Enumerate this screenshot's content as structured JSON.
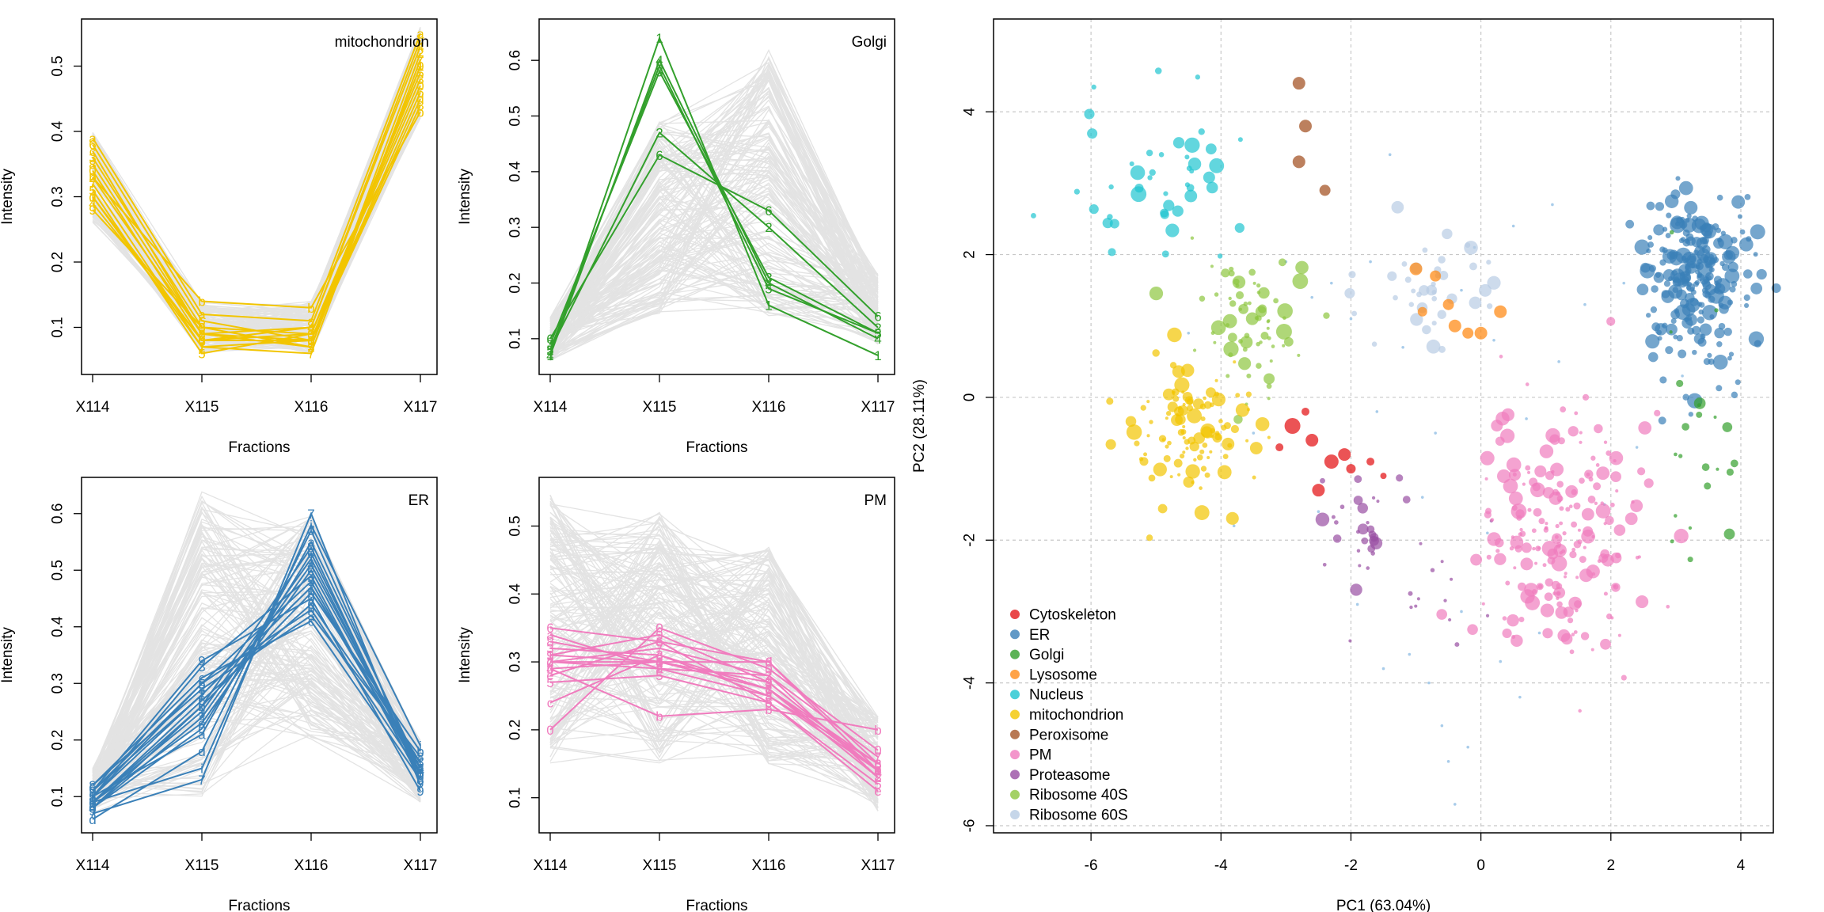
{
  "chart_data": [
    {
      "type": "line",
      "title": "mitochondrion",
      "xlabel": "Fractions",
      "ylabel": "Intensity",
      "categories": [
        "X114",
        "X115",
        "X116",
        "X117"
      ],
      "ylim": [
        0.04,
        0.56
      ],
      "yticks": [
        0.1,
        0.2,
        0.3,
        0.4,
        0.5
      ],
      "color": "#F2C500",
      "background_lines": {
        "count": 160,
        "range_min": [
          0.26,
          0.06,
          0.06,
          0.42
        ],
        "range_max": [
          0.4,
          0.14,
          0.14,
          0.56
        ]
      },
      "series": [
        {
          "label": "1",
          "values": [
            0.3,
            0.07,
            0.08,
            0.5
          ]
        },
        {
          "label": "2",
          "values": [
            0.33,
            0.09,
            0.07,
            0.52
          ]
        },
        {
          "label": "3",
          "values": [
            0.36,
            0.1,
            0.09,
            0.48
          ]
        },
        {
          "label": "4",
          "values": [
            0.29,
            0.08,
            0.1,
            0.53
          ]
        },
        {
          "label": "5",
          "values": [
            0.31,
            0.06,
            0.09,
            0.49
          ]
        },
        {
          "label": "6",
          "values": [
            0.38,
            0.11,
            0.08,
            0.46
          ]
        },
        {
          "label": "7",
          "values": [
            0.32,
            0.07,
            0.06,
            0.51
          ]
        },
        {
          "label": "8",
          "values": [
            0.35,
            0.09,
            0.08,
            0.44
          ]
        },
        {
          "label": "9",
          "values": [
            0.28,
            0.1,
            0.07,
            0.5
          ]
        },
        {
          "label": "0",
          "values": [
            0.34,
            0.08,
            0.09,
            0.47
          ]
        },
        {
          "label": "a",
          "values": [
            0.39,
            0.12,
            0.11,
            0.55
          ]
        },
        {
          "label": "b",
          "values": [
            0.33,
            0.14,
            0.13,
            0.43
          ]
        },
        {
          "label": "c",
          "values": [
            0.37,
            0.09,
            0.1,
            0.54
          ]
        },
        {
          "label": "d",
          "values": [
            0.3,
            0.08,
            0.08,
            0.45
          ]
        }
      ]
    },
    {
      "type": "line",
      "title": "Golgi",
      "xlabel": "Fractions",
      "ylabel": "Intensity",
      "categories": [
        "X114",
        "X115",
        "X116",
        "X117"
      ],
      "ylim": [
        0.05,
        0.66
      ],
      "yticks": [
        0.1,
        0.2,
        0.3,
        0.4,
        0.5,
        0.6
      ],
      "color": "#33A02C",
      "background_lines": {
        "count": 160,
        "range_min": [
          0.06,
          0.14,
          0.14,
          0.09
        ],
        "range_max": [
          0.14,
          0.5,
          0.62,
          0.22
        ]
      },
      "series": [
        {
          "label": "1",
          "values": [
            0.07,
            0.64,
            0.16,
            0.07
          ]
        },
        {
          "label": "2",
          "values": [
            0.08,
            0.47,
            0.3,
            0.12
          ]
        },
        {
          "label": "3",
          "values": [
            0.09,
            0.58,
            0.21,
            0.11
          ]
        },
        {
          "label": "4",
          "values": [
            0.07,
            0.6,
            0.2,
            0.1
          ]
        },
        {
          "label": "5",
          "values": [
            0.08,
            0.59,
            0.19,
            0.11
          ]
        },
        {
          "label": "6",
          "values": [
            0.1,
            0.43,
            0.33,
            0.14
          ]
        }
      ]
    },
    {
      "type": "line",
      "title": "ER",
      "xlabel": "Fractions",
      "ylabel": "Intensity",
      "categories": [
        "X114",
        "X115",
        "X116",
        "X117"
      ],
      "ylim": [
        0.05,
        0.65
      ],
      "yticks": [
        0.1,
        0.2,
        0.3,
        0.4,
        0.5,
        0.6
      ],
      "color": "#3A80B8",
      "background_lines": {
        "count": 160,
        "range_min": [
          0.07,
          0.1,
          0.2,
          0.09
        ],
        "range_max": [
          0.15,
          0.64,
          0.6,
          0.2
        ]
      },
      "series": [
        {
          "label": "1",
          "values": [
            0.09,
            0.25,
            0.52,
            0.14
          ]
        },
        {
          "label": "2",
          "values": [
            0.11,
            0.28,
            0.47,
            0.15
          ]
        },
        {
          "label": "3",
          "values": [
            0.1,
            0.33,
            0.49,
            0.13
          ]
        },
        {
          "label": "4",
          "values": [
            0.08,
            0.24,
            0.51,
            0.15
          ]
        },
        {
          "label": "5",
          "values": [
            0.1,
            0.3,
            0.48,
            0.14
          ]
        },
        {
          "label": "6",
          "values": [
            0.09,
            0.27,
            0.44,
            0.16
          ]
        },
        {
          "label": "7",
          "values": [
            0.07,
            0.13,
            0.6,
            0.12
          ]
        },
        {
          "label": "8",
          "values": [
            0.12,
            0.29,
            0.42,
            0.17
          ]
        },
        {
          "label": "9",
          "values": [
            0.11,
            0.34,
            0.45,
            0.11
          ]
        },
        {
          "label": "0",
          "values": [
            0.08,
            0.22,
            0.53,
            0.14
          ]
        },
        {
          "label": "a",
          "values": [
            0.1,
            0.21,
            0.55,
            0.15
          ]
        },
        {
          "label": "b",
          "values": [
            0.09,
            0.26,
            0.46,
            0.18
          ]
        },
        {
          "label": "c",
          "values": [
            0.12,
            0.31,
            0.41,
            0.13
          ]
        },
        {
          "label": "d",
          "values": [
            0.06,
            0.18,
            0.57,
            0.14
          ]
        },
        {
          "label": "e",
          "values": [
            0.09,
            0.23,
            0.5,
            0.15
          ]
        },
        {
          "label": "f",
          "values": [
            0.1,
            0.28,
            0.47,
            0.16
          ]
        },
        {
          "label": "g",
          "values": [
            0.08,
            0.26,
            0.54,
            0.13
          ]
        },
        {
          "label": "h",
          "values": [
            0.11,
            0.3,
            0.43,
            0.14
          ]
        },
        {
          "label": "i",
          "values": [
            0.09,
            0.15,
            0.58,
            0.19
          ]
        }
      ]
    },
    {
      "type": "line",
      "title": "PM",
      "xlabel": "Fractions",
      "ylabel": "Intensity",
      "categories": [
        "X114",
        "X115",
        "X116",
        "X117"
      ],
      "ylim": [
        0.06,
        0.56
      ],
      "yticks": [
        0.1,
        0.2,
        0.3,
        0.4,
        0.5
      ],
      "color": "#F07CBE",
      "background_lines": {
        "count": 160,
        "range_min": [
          0.15,
          0.15,
          0.15,
          0.08
        ],
        "range_max": [
          0.55,
          0.52,
          0.47,
          0.22
        ]
      },
      "series": [
        {
          "label": "1",
          "values": [
            0.31,
            0.3,
            0.26,
            0.14
          ]
        },
        {
          "label": "2",
          "values": [
            0.3,
            0.29,
            0.28,
            0.13
          ]
        },
        {
          "label": "3",
          "values": [
            0.32,
            0.31,
            0.25,
            0.15
          ]
        },
        {
          "label": "4",
          "values": [
            0.29,
            0.3,
            0.27,
            0.14
          ]
        },
        {
          "label": "5",
          "values": [
            0.27,
            0.28,
            0.24,
            0.12
          ]
        },
        {
          "label": "6",
          "values": [
            0.35,
            0.33,
            0.3,
            0.15
          ]
        },
        {
          "label": "7",
          "values": [
            0.3,
            0.32,
            0.28,
            0.16
          ]
        },
        {
          "label": "8",
          "values": [
            0.33,
            0.3,
            0.26,
            0.13
          ]
        },
        {
          "label": "9",
          "values": [
            0.31,
            0.34,
            0.27,
            0.14
          ]
        },
        {
          "label": "0",
          "values": [
            0.2,
            0.35,
            0.29,
            0.17
          ]
        },
        {
          "label": "a",
          "values": [
            0.34,
            0.29,
            0.25,
            0.14
          ]
        },
        {
          "label": "b",
          "values": [
            0.29,
            0.22,
            0.23,
            0.2
          ]
        },
        {
          "label": "c",
          "values": [
            0.24,
            0.31,
            0.26,
            0.15
          ]
        },
        {
          "label": "d",
          "values": [
            0.3,
            0.3,
            0.3,
            0.14
          ]
        },
        {
          "label": "e",
          "values": [
            0.28,
            0.33,
            0.24,
            0.11
          ]
        }
      ]
    },
    {
      "type": "scatter",
      "xlabel": "PC1 (63.04%)",
      "ylabel": "PC2 (28.11%)",
      "xlim": [
        -7.5,
        4.5
      ],
      "ylim": [
        -6.1,
        5.3
      ],
      "xticks": [
        -6,
        -4,
        -2,
        0,
        2,
        4
      ],
      "yticks": [
        -6,
        -4,
        -2,
        0,
        2,
        4
      ],
      "grid": true,
      "legend_position": "bottom-left",
      "unknown_color": "#9EC6E8",
      "unknown_points": [
        [
          -2.3,
          1.6
        ],
        [
          -2.0,
          1.1
        ],
        [
          -1.7,
          1.9
        ],
        [
          -1.2,
          0.7
        ],
        [
          -0.7,
          -0.5
        ],
        [
          -0.3,
          1.5
        ],
        [
          0.2,
          0.8
        ],
        [
          0.7,
          -0.3
        ],
        [
          1.2,
          0.5
        ],
        [
          1.6,
          1.3
        ],
        [
          -1.1,
          -3.6
        ],
        [
          -0.8,
          -4.0
        ],
        [
          -0.6,
          -4.6
        ],
        [
          -0.5,
          -5.1
        ],
        [
          -0.2,
          -4.9
        ],
        [
          -0.4,
          -5.7
        ],
        [
          0.3,
          -3.7
        ],
        [
          0.6,
          -4.2
        ],
        [
          0.9,
          -3.3
        ],
        [
          -1.5,
          -3.8
        ],
        [
          -0.3,
          -3.0
        ],
        [
          -2.6,
          1.4
        ],
        [
          -3.0,
          1.9
        ],
        [
          -1.4,
          3.4
        ],
        [
          -0.1,
          2.1
        ],
        [
          0.5,
          2.4
        ],
        [
          1.1,
          2.7
        ],
        [
          2.2,
          1.6
        ],
        [
          2.8,
          1.0
        ],
        [
          3.1,
          0.3
        ],
        [
          -3.5,
          -0.5
        ],
        [
          -1.6,
          -0.2
        ],
        [
          -0.9,
          -1.4
        ],
        [
          0.1,
          -1.9
        ],
        [
          -2.5,
          -1.6
        ],
        [
          -1.9,
          -2.9
        ],
        [
          -3.8,
          -1.8
        ],
        [
          -4.5,
          0.9
        ],
        [
          1.9,
          -1.5
        ],
        [
          2.4,
          -0.7
        ]
      ],
      "points": [
        {
          "cls": "Cytoskeleton",
          "x": -2.9,
          "y": -0.4,
          "s": 10
        },
        {
          "cls": "Cytoskeleton",
          "x": -2.6,
          "y": -0.6,
          "s": 8
        },
        {
          "cls": "Cytoskeleton",
          "x": -2.3,
          "y": -0.9,
          "s": 9
        },
        {
          "cls": "Cytoskeleton",
          "x": -2.1,
          "y": -0.8,
          "s": 8
        },
        {
          "cls": "Cytoskeleton",
          "x": -2.5,
          "y": -1.3,
          "s": 8
        },
        {
          "cls": "Cytoskeleton",
          "x": -2.0,
          "y": -1.0,
          "s": 6
        },
        {
          "cls": "Cytoskeleton",
          "x": -1.7,
          "y": -0.9,
          "s": 5
        },
        {
          "cls": "Cytoskeleton",
          "x": -3.1,
          "y": -0.7,
          "s": 5
        },
        {
          "cls": "Cytoskeleton",
          "x": -2.7,
          "y": -0.2,
          "s": 5
        },
        {
          "cls": "Cytoskeleton",
          "x": -1.5,
          "y": -1.1,
          "s": 4
        },
        {
          "cls": "Peroxisome",
          "x": -2.8,
          "y": 4.4,
          "s": 8
        },
        {
          "cls": "Peroxisome",
          "x": -2.7,
          "y": 3.8,
          "s": 8
        },
        {
          "cls": "Peroxisome",
          "x": -2.8,
          "y": 3.3,
          "s": 8
        },
        {
          "cls": "Peroxisome",
          "x": -2.4,
          "y": 2.9,
          "s": 7
        },
        {
          "cls": "Lysosome",
          "x": -1.0,
          "y": 1.8,
          "s": 8
        },
        {
          "cls": "Lysosome",
          "x": -0.7,
          "y": 1.7,
          "s": 7
        },
        {
          "cls": "Lysosome",
          "x": -0.4,
          "y": 1.0,
          "s": 8
        },
        {
          "cls": "Lysosome",
          "x": -0.2,
          "y": 0.9,
          "s": 7
        },
        {
          "cls": "Lysosome",
          "x": 0.0,
          "y": 0.9,
          "s": 8
        },
        {
          "cls": "Lysosome",
          "x": 0.3,
          "y": 1.2,
          "s": 8
        },
        {
          "cls": "Lysosome",
          "x": -0.5,
          "y": 1.3,
          "s": 7
        },
        {
          "cls": "Lysosome",
          "x": -0.9,
          "y": 1.2,
          "s": 6
        }
      ],
      "clusters": [
        {
          "cls": "ER",
          "cx": 3.3,
          "cy": 1.7,
          "sx": 0.45,
          "sy": 0.6,
          "n": 230,
          "smin": 3,
          "smax": 10
        },
        {
          "cls": "Golgi",
          "cx": 3.4,
          "cy": -0.5,
          "sx": 0.3,
          "sy": 0.8,
          "n": 22,
          "smin": 2,
          "smax": 8
        },
        {
          "cls": "Nucleus",
          "cx": -5.0,
          "cy": 3.0,
          "sx": 0.6,
          "sy": 0.6,
          "n": 45,
          "smin": 3,
          "smax": 10
        },
        {
          "cls": "Ribosome 40S",
          "cx": -3.5,
          "cy": 1.0,
          "sx": 0.45,
          "sy": 0.5,
          "n": 70,
          "smin": 2,
          "smax": 10
        },
        {
          "cls": "mitochondrion",
          "cx": -4.4,
          "cy": -0.5,
          "sx": 0.55,
          "sy": 0.5,
          "n": 110,
          "smin": 2,
          "smax": 10
        },
        {
          "cls": "Ribosome 60S",
          "cx": -0.7,
          "cy": 1.7,
          "sx": 0.5,
          "sy": 0.4,
          "n": 40,
          "smin": 3,
          "smax": 9
        },
        {
          "cls": "Proteasome",
          "cx": -1.8,
          "cy": -1.8,
          "sx": 0.3,
          "sy": 0.4,
          "n": 28,
          "smin": 2,
          "smax": 9
        },
        {
          "cls": "Proteasome",
          "cx": -0.8,
          "cy": -2.7,
          "sx": 0.5,
          "sy": 0.5,
          "n": 15,
          "smin": 2,
          "smax": 3
        },
        {
          "cls": "PM",
          "cx": 1.2,
          "cy": -2.0,
          "sx": 0.6,
          "sy": 0.9,
          "n": 210,
          "smin": 2,
          "smax": 10
        }
      ],
      "legend": [
        {
          "label": "Cytoskeleton",
          "color": "#E41A1C"
        },
        {
          "label": "ER",
          "color": "#3A80B8"
        },
        {
          "label": "Golgi",
          "color": "#33A02C"
        },
        {
          "label": "Lysosome",
          "color": "#FF8C1A"
        },
        {
          "label": "Nucleus",
          "color": "#1FC4D0"
        },
        {
          "label": "mitochondrion",
          "color": "#F2C500"
        },
        {
          "label": "Peroxisome",
          "color": "#A65628"
        },
        {
          "label": "PM",
          "color": "#F07CBE"
        },
        {
          "label": "Proteasome",
          "color": "#984EA3"
        },
        {
          "label": "Ribosome 40S",
          "color": "#8DC63F"
        },
        {
          "label": "Ribosome 60S",
          "color": "#B8CCE4"
        }
      ]
    }
  ]
}
